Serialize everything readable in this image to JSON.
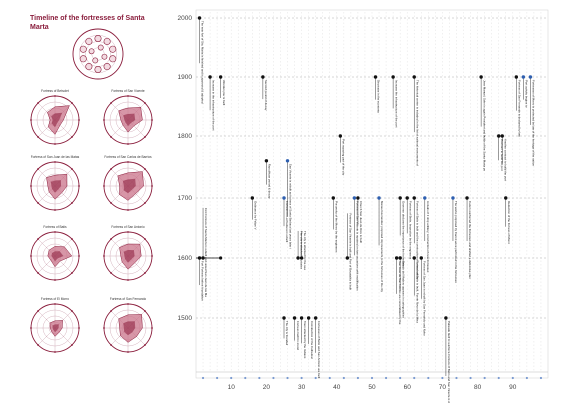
{
  "title": "Timeline of the fortresses of Santa Marta",
  "colors": {
    "accent": "#8a1d3c",
    "fill": "#c9738a",
    "fill_light": "#e6b8c4",
    "event": "#111111",
    "blue": "#2e5fb0",
    "grid": "#999999"
  },
  "y_axis": {
    "ticks": [
      1500,
      1600,
      1700,
      1800,
      1900,
      2000
    ]
  },
  "x_axis": {
    "ticks": [
      10,
      20,
      30,
      40,
      50,
      60,
      70,
      80,
      90
    ]
  },
  "radars": [
    {
      "name": "Fortress of Betsolet",
      "values": [
        0.55,
        0.85,
        0.35,
        0.3,
        0.6,
        0.4,
        0.2,
        0.45
      ]
    },
    {
      "name": "Fortress of San Vicente",
      "values": [
        0.5,
        0.75,
        0.6,
        0.35,
        0.5,
        0.3,
        0.3,
        0.55
      ]
    },
    {
      "name": "Fortress of San Juan de las Matas",
      "values": [
        0.45,
        0.7,
        0.5,
        0.4,
        0.55,
        0.35,
        0.3,
        0.5
      ]
    },
    {
      "name": "Fortress of San Carlos de Barrios",
      "values": [
        0.55,
        0.85,
        0.65,
        0.45,
        0.6,
        0.5,
        0.35,
        0.6
      ]
    },
    {
      "name": "Fortress of Batis",
      "values": [
        0.4,
        0.55,
        0.7,
        0.3,
        0.45,
        0.25,
        0.3,
        0.35
      ]
    },
    {
      "name": "Fortress of San Antonio",
      "values": [
        0.5,
        0.7,
        0.55,
        0.4,
        0.55,
        0.35,
        0.3,
        0.5
      ]
    },
    {
      "name": "Fortress of El Morro",
      "values": [
        0.3,
        0.45,
        0.3,
        0.25,
        0.35,
        0.2,
        0.2,
        0.3
      ]
    },
    {
      "name": "Fortress of San Fernando",
      "values": [
        0.55,
        0.8,
        0.6,
        0.5,
        0.6,
        0.45,
        0.35,
        0.55
      ]
    }
  ],
  "events": [
    {
      "x": 1,
      "year": 2000,
      "dir": "down",
      "dot": "black",
      "label": "The new fort of Sta. Marta is finished and is approved & adopted"
    },
    {
      "x": 4,
      "year": 1900,
      "dir": "down",
      "dot": "black",
      "label": "Increase in the infrastructure of the port"
    },
    {
      "x": 7,
      "year": 1900,
      "dir": "down",
      "dot": "black",
      "label": "Wooden pier is built"
    },
    {
      "x": 19,
      "year": 1900,
      "dir": "down",
      "dot": "black",
      "label": "Second period of decay"
    },
    {
      "x": 41,
      "year": 1800,
      "dir": "down",
      "dot": "black",
      "label": "Port repaving part of the city"
    },
    {
      "x": 51,
      "year": 1900,
      "dir": "down",
      "dot": "black",
      "label": "Decrease in the economy"
    },
    {
      "x": 56,
      "year": 1900,
      "dir": "down",
      "dot": "black",
      "label": "Increase the infrastructure of the port"
    },
    {
      "x": 62,
      "year": 1900,
      "dir": "down",
      "dot": "black",
      "label": "The historical center is included in the list of national monuments of the country"
    },
    {
      "x": 81,
      "year": 1900,
      "dir": "down",
      "dot": "black",
      "label": "Jose Manuel, Soler is again President and builds of the Santa Marta port"
    },
    {
      "x": 86,
      "year": 1800,
      "dir": "down",
      "dot": "black",
      "label": "Contract to build the port"
    },
    {
      "x": 87,
      "year": 1800,
      "dir": "down",
      "dot": "black",
      "label": "Another contract to build the port"
    },
    {
      "x": 91,
      "year": 1900,
      "dir": "down",
      "dot": "black",
      "label": "Fortress of San Fernando is declared by law"
    },
    {
      "x": 93,
      "year": 1900,
      "dir": "down",
      "dot": "blue",
      "label": "Port activity begins to"
    },
    {
      "x": 95,
      "year": 1900,
      "dir": "down",
      "dot": "blue",
      "label": "Fortresses of Morro is protected by law of the heritage of the nation"
    },
    {
      "x": 20,
      "year": 1760,
      "dir": "down",
      "dot": "black",
      "label": "Republican period & decay"
    },
    {
      "x": 26,
      "year": 1760,
      "dir": "down",
      "dot": "blue",
      "label": "San Vicente is rebuilt as fortress of Santa Barbara last years later it was in ruin"
    },
    {
      "x": 16,
      "year": 1700,
      "dir": "down",
      "dot": "black",
      "label": "Ordinance by Felipe V"
    },
    {
      "x": 25,
      "year": 1700,
      "dir": "down",
      "dot": "blue",
      "label": "Fortress on La Pedrera is rebuilt"
    },
    {
      "x": 39,
      "year": 1700,
      "dir": "down",
      "dot": "black",
      "label": "Pre works of the Morro by the engineers"
    },
    {
      "x": 45,
      "year": 1700,
      "dir": "down",
      "dot": "blue",
      "label": "Fortress of San Vicente is repaired on two occasions with modification by the engineer"
    },
    {
      "x": 46,
      "year": 1700,
      "dir": "down",
      "dot": "black",
      "label": "Church San Juan de Dios is built"
    },
    {
      "x": 52,
      "year": 1700,
      "dir": "down",
      "dot": "blue",
      "label": "Manuel Hernandez proposed improvements to the fortresses of the city"
    },
    {
      "x": 58,
      "year": 1700,
      "dir": "down",
      "dot": "black",
      "label": "Governor declares the importance of the fortresses"
    },
    {
      "x": 60,
      "year": 1700,
      "dir": "down",
      "dot": "black",
      "label": "Fortress of Betin, Inspection by the engineers"
    },
    {
      "x": 62,
      "year": 1700,
      "dir": "down",
      "dot": "black",
      "label": "Fortress of Batis is built and the construction of a new battery"
    },
    {
      "x": 65,
      "year": 1700,
      "dir": "down",
      "dot": "blue",
      "label": "Arrivals of 1 ship artillery, construction of new fortresses"
    },
    {
      "x": 73,
      "year": 1700,
      "dir": "down",
      "dot": "blue",
      "label": "The works proposed by Canon were performed in the fortresses"
    },
    {
      "x": 77,
      "year": 1700,
      "dir": "down",
      "dot": "black",
      "label": "Canon reinforced the fortresses and drafted a defensive plan"
    },
    {
      "x": 88,
      "year": 1700,
      "dir": "down",
      "dot": "black",
      "label": "Reduction of the fortress of Morro"
    },
    {
      "x": 1,
      "year": 1600,
      "dir": "down",
      "dot": "black",
      "label": "Fort Fortress before foundation"
    },
    {
      "x": 2,
      "year": 1600,
      "dir": "up",
      "dot": "black",
      "label": "First Fortress of Santa Marta is rebuilt and raised San Juan de las Matas"
    },
    {
      "x": 25,
      "year": 1500,
      "dir": "down",
      "dot": "black",
      "label": "The city is founded"
    },
    {
      "x": 28,
      "year": 1500,
      "dir": "down",
      "dot": "black",
      "label": "Fortress built for mood"
    },
    {
      "x": 30,
      "year": 1500,
      "dir": "down",
      "dot": "black",
      "label": "Town attacked by the Indians"
    },
    {
      "x": 32,
      "year": 1500,
      "dir": "down",
      "dot": "black",
      "label": "Construction of the Cathedral"
    },
    {
      "x": 34,
      "year": 1500,
      "dir": "down",
      "dot": "black",
      "label": "Fortresses of Betin and San Antonio are built"
    },
    {
      "x": 29,
      "year": 1600,
      "dir": "up",
      "dot": "black",
      "label": "The city is attacked by pirates"
    },
    {
      "x": 30,
      "year": 1600,
      "dir": "up",
      "dot": "black",
      "label": "The city is attacked by the sea"
    },
    {
      "x": 43,
      "year": 1600,
      "dir": "up",
      "dot": "black",
      "label": "Fortress of San Vicente is built and Fort of Bocatabla is built"
    },
    {
      "x": 57,
      "year": 1600,
      "dir": "down",
      "dot": "black",
      "label": "San Juan de San Antonio are consolidated by the"
    },
    {
      "x": 58,
      "year": 1600,
      "dir": "down",
      "dot": "black",
      "label": "Estado del Madero appears in cartographies"
    },
    {
      "x": 62,
      "year": 1600,
      "dir": "down",
      "dot": "black",
      "label": "Fortress of Betin is built, Fuerte Novo de la Mina"
    },
    {
      "x": 64,
      "year": 1600,
      "dir": "down",
      "dot": "black",
      "label": "Fortress of San Juan is rebuilt by San Fernando and Nobo"
    },
    {
      "x": 71,
      "year": 1500,
      "dir": "down",
      "dot": "black",
      "label": "Palisade built to reinforce Fortress of Betin and San Vicente is damaged and lower fortress of San Juan de las Matas is destroyed in 2nd attack"
    }
  ]
}
